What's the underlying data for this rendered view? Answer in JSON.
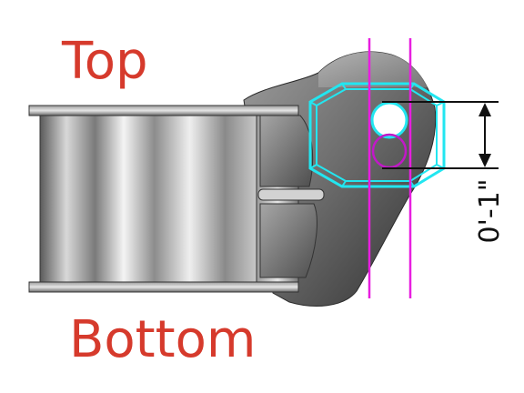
{
  "labels": {
    "top": "Top",
    "bottom": "Bottom",
    "dimension": "0'-1\""
  },
  "colors": {
    "label_red": "#d63a2c",
    "outline_cyan": "#22e6f0",
    "guide_magenta": "#e81ee0",
    "circle_magenta": "#c218c8",
    "dimension_black": "#111111",
    "metal_dark": "#4a4a4a",
    "metal_light": "#eeeeee"
  }
}
